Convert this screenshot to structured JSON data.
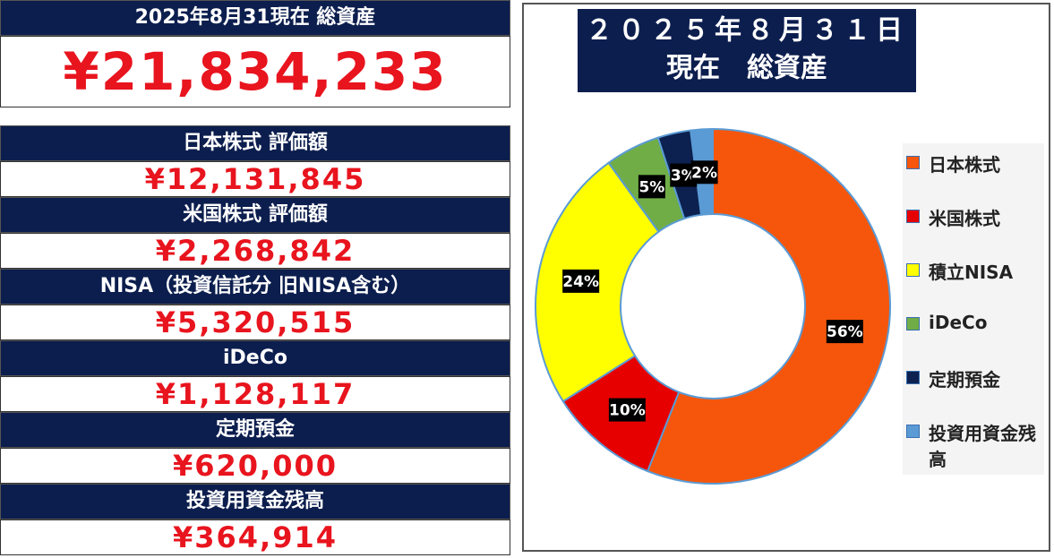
{
  "summary": {
    "title": "2025年8月31現在 総資産",
    "total": "¥21,834,233",
    "items": [
      {
        "label": "日本株式 評価額",
        "value": "¥12,131,845"
      },
      {
        "label": "米国株式 評価額",
        "value": "¥2,268,842"
      },
      {
        "label": "NISA（投資信託分 旧NISA含む）",
        "value": "¥5,320,515"
      },
      {
        "label": "iDeCo",
        "value": "¥1,128,117"
      },
      {
        "label": "定期預金",
        "value": "¥620,000"
      },
      {
        "label": "投資用資金残高",
        "value": "¥364,914"
      }
    ]
  },
  "chart_data": {
    "type": "donut",
    "title": "２０２５年８月３１日",
    "subtitle": "現在　総資産",
    "categories": [
      "日本株式",
      "米国株式",
      "積立NISA",
      "iDeCo",
      "定期預金",
      "投資用資金残高"
    ],
    "values": [
      56,
      10,
      24,
      5,
      3,
      2
    ],
    "value_labels": [
      "56%",
      "10%",
      "24%",
      "5%",
      "3%",
      "2%"
    ],
    "colors": [
      "#f5560c",
      "#e60000",
      "#ffff00",
      "#70ad47",
      "#0c2150",
      "#5b9bd5"
    ],
    "legend": "right"
  }
}
